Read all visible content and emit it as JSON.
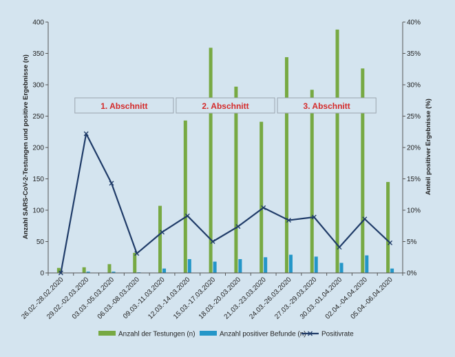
{
  "chart_data": {
    "type": "bar",
    "categories": [
      "26.02.-28.02.2020",
      "29.02.-02.03.2020",
      "03.03.-05.03.2020",
      "06.03.-08.03.2020",
      "09.03.-11.03.2020",
      "12.03.-14.03.2020",
      "15.03.-17.03.2020",
      "18.03.-20.03.2020",
      "21.03.-23.03.2020",
      "24.03.-26.03.2020",
      "27.03.-29.03.2020",
      "30.03.-01.04.2020",
      "02.04.-04.04.2020",
      "05.04.-06.04.2020"
    ],
    "series": [
      {
        "name": "Anzahl der Testungen (n)",
        "type": "bar",
        "axis": "left",
        "color": "#77a943",
        "values": [
          8,
          9,
          14,
          32,
          107,
          243,
          359,
          297,
          241,
          344,
          292,
          388,
          326,
          145
        ]
      },
      {
        "name": "Anzahl positiver Befunde (n)",
        "type": "bar",
        "axis": "left",
        "color": "#2496c8",
        "values": [
          0,
          2,
          2,
          1,
          7,
          22,
          18,
          22,
          25,
          29,
          26,
          16,
          28,
          7
        ]
      },
      {
        "name": "Positivrate",
        "type": "line",
        "axis": "right",
        "color": "#1f3b68",
        "values": [
          0,
          22.2,
          14.3,
          3.1,
          6.5,
          9.1,
          5.0,
          7.4,
          10.4,
          8.4,
          8.9,
          4.1,
          8.6,
          4.8
        ]
      }
    ],
    "ylabel": "Anzahl SARS-CoV-2-Testungen und positive Ergebnisse (n)",
    "y2label": "Anteil positiver Ergebnisse (%)",
    "ylim": [
      0,
      400
    ],
    "y2lim": [
      0,
      40
    ],
    "yticks": [
      "0",
      "50",
      "100",
      "150",
      "200",
      "250",
      "300",
      "350",
      "400"
    ],
    "y2ticks": [
      "0%",
      "5%",
      "10%",
      "15%",
      "20%",
      "25%",
      "30%",
      "35%",
      "40%"
    ],
    "grid": false,
    "legend_position": "bottom",
    "sections": [
      {
        "label": "1. Abschnitt",
        "from": 1,
        "to": 4
      },
      {
        "label": "2. Abschnitt",
        "from": 5,
        "to": 8
      },
      {
        "label": "3. Abschnitt",
        "from": 9,
        "to": 12
      }
    ]
  }
}
